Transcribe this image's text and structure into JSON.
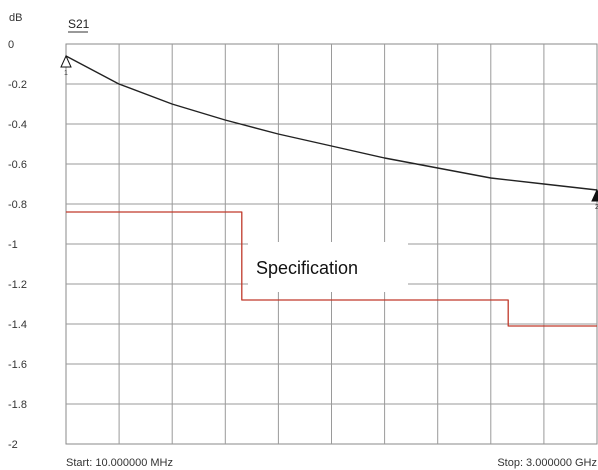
{
  "chart_data": {
    "type": "line",
    "ylabel": "dB",
    "trace_label": "S21",
    "x_start_label": "Start: 10.000000 MHz",
    "x_stop_label": "Stop: 3.000000 GHz",
    "xlim": [
      10,
      3000
    ],
    "ylim": [
      -2,
      0
    ],
    "y_ticks": [
      0,
      -0.2,
      -0.4,
      -0.6,
      -0.8,
      -1,
      -1.2,
      -1.4,
      -1.6,
      -1.8,
      -2
    ],
    "y_tick_labels": [
      "0",
      "-0.2",
      "-0.4",
      "-0.6",
      "-0.8",
      "-1",
      "-1.2",
      "-1.4",
      "-1.6",
      "-1.8",
      "-2"
    ],
    "grid": true,
    "series": [
      {
        "name": "S21",
        "color": "#222222",
        "x": [
          10,
          308,
          607,
          906,
          1205,
          1505,
          1804,
          2103,
          2402,
          2701,
          3000
        ],
        "y": [
          -0.06,
          -0.2,
          -0.3,
          -0.38,
          -0.45,
          -0.51,
          -0.57,
          -0.62,
          -0.67,
          -0.7,
          -0.73
        ]
      },
      {
        "name": "Specification",
        "color": "#c0392b",
        "x": [
          10,
          1000,
          1000,
          2500,
          2500,
          3000
        ],
        "y": [
          -0.84,
          -0.84,
          -1.28,
          -1.28,
          -1.41,
          -1.41
        ]
      }
    ],
    "annotations": [
      {
        "text": "Specification"
      }
    ],
    "markers": [
      {
        "id": "1",
        "x": 10,
        "y": -0.06
      },
      {
        "id": "2",
        "x": 3000,
        "y": -0.73
      }
    ]
  }
}
